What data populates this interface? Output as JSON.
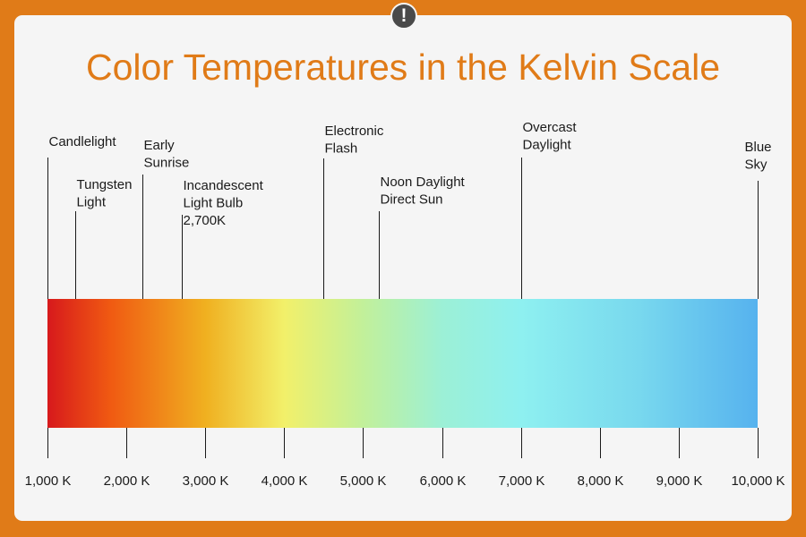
{
  "title": "Color Temperatures in the Kelvin Scale",
  "badge": "!",
  "axis": {
    "min": 1000,
    "max": 10000,
    "ticks": [
      {
        "value": 1000,
        "label": "1,000 K"
      },
      {
        "value": 2000,
        "label": "2,000 K"
      },
      {
        "value": 3000,
        "label": "3,000 K"
      },
      {
        "value": 4000,
        "label": "4,000 K"
      },
      {
        "value": 5000,
        "label": "5,000 K"
      },
      {
        "value": 6000,
        "label": "6,000 K"
      },
      {
        "value": 7000,
        "label": "7,000 K"
      },
      {
        "value": 8000,
        "label": "8,000 K"
      },
      {
        "value": 9000,
        "label": "9,000 K"
      },
      {
        "value": 10000,
        "label": "10,000 K"
      }
    ]
  },
  "gradient": [
    {
      "value": 1000,
      "color": "#d7191c"
    },
    {
      "value": 1800,
      "color": "#f05a12"
    },
    {
      "value": 3000,
      "color": "#f0b020"
    },
    {
      "value": 4000,
      "color": "#f2f06a"
    },
    {
      "value": 5000,
      "color": "#c2f09a"
    },
    {
      "value": 6000,
      "color": "#9cf0d6"
    },
    {
      "value": 7000,
      "color": "#8ef0f0"
    },
    {
      "value": 8500,
      "color": "#78d8ee"
    },
    {
      "value": 10000,
      "color": "#56b2ee"
    }
  ],
  "sources": [
    {
      "value": 1000,
      "lines": [
        "Candlelight"
      ]
    },
    {
      "value": 1350,
      "lines": [
        "Tungsten",
        "Light"
      ]
    },
    {
      "value": 2200,
      "lines": [
        "Early",
        "Sunrise"
      ]
    },
    {
      "value": 2700,
      "lines": [
        "Incandescent",
        "Light Bulb",
        "2,700K"
      ]
    },
    {
      "value": 4500,
      "lines": [
        "Electronic",
        "Flash"
      ]
    },
    {
      "value": 5200,
      "lines": [
        "Noon Daylight",
        "Direct Sun"
      ]
    },
    {
      "value": 7000,
      "lines": [
        "Overcast",
        "Daylight"
      ]
    },
    {
      "value": 10000,
      "lines": [
        "Blue",
        "Sky"
      ]
    }
  ]
}
